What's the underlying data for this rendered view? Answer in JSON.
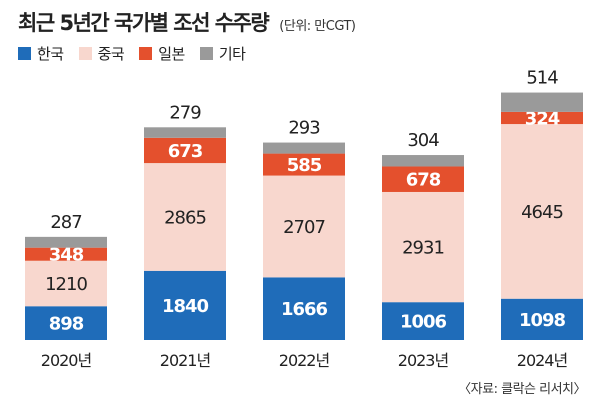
{
  "title": "최근 5년간 국가별 조선 수주량",
  "unit": "(단위: 만CGT)",
  "source": "〈자료: 클락슨 리서치〉",
  "colors": {
    "korea": "#1f6cb9",
    "china": "#f8d7ce",
    "japan": "#e4502d",
    "other": "#9a9a9a"
  },
  "chart_data": {
    "type": "bar",
    "stacked": true,
    "categories": [
      "2020년",
      "2021년",
      "2022년",
      "2023년",
      "2024년"
    ],
    "series": [
      {
        "name": "한국",
        "key": "korea",
        "values": [
          898,
          1840,
          1666,
          1006,
          1098
        ]
      },
      {
        "name": "중국",
        "key": "china",
        "values": [
          1210,
          2865,
          2707,
          2931,
          4645
        ]
      },
      {
        "name": "일본",
        "key": "japan",
        "values": [
          348,
          673,
          585,
          678,
          324
        ]
      },
      {
        "name": "기타",
        "key": "other",
        "values": [
          287,
          279,
          293,
          304,
          514
        ]
      }
    ],
    "xlabel": "",
    "ylabel": "",
    "legend_position": "top-left",
    "grid": false
  }
}
